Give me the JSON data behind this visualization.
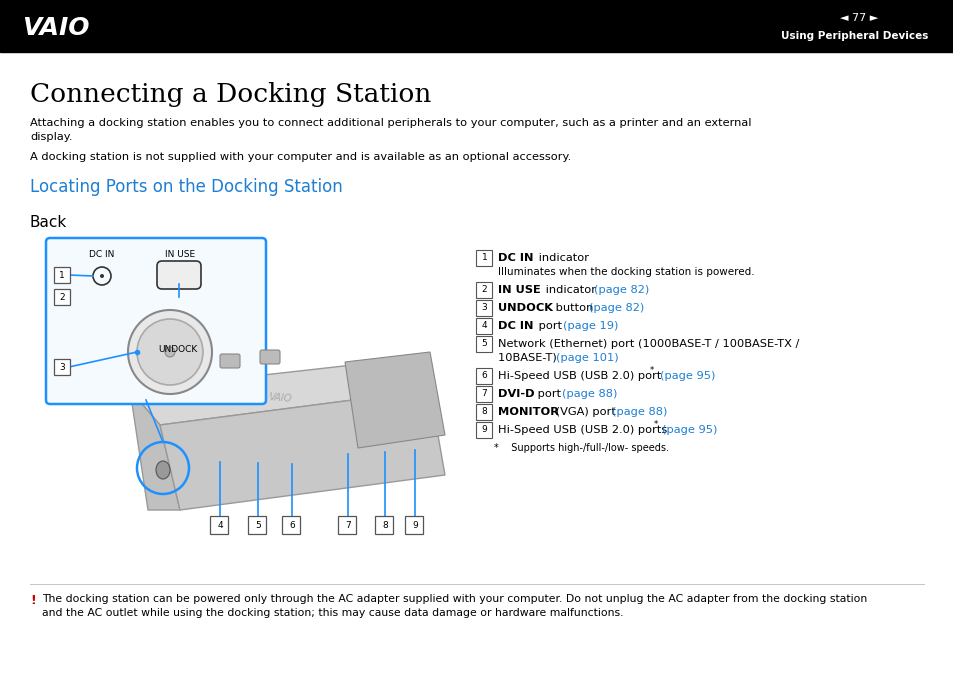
{
  "bg_color": "#ffffff",
  "header_bg": "#000000",
  "header_text_color": "#ffffff",
  "header_page": "77",
  "header_section": "Using Peripheral Devices",
  "title": "Connecting a Docking Station",
  "subtitle_color": "#1e7fd4",
  "subtitle": "Locating Ports on the Docking Station",
  "back_label": "Back",
  "para1": "Attaching a docking station enables you to connect additional peripherals to your computer, such as a printer and an external\ndisplay.",
  "para2": "A docking station is not supplied with your computer and is available as an optional accessory.",
  "link_color": "#1e7fd4",
  "warning_color": "#cc0000",
  "warning_text": "The docking station can be powered only through the AC adapter supplied with your computer. Do not unplug the AC adapter from the docking station\nand the AC outlet while using the docking station; this may cause data damage or hardware malfunctions.",
  "diagram_blue": "#1e90ff",
  "diagram_gray": "#c0c0c0",
  "diagram_dark": "#555555",
  "items": [
    {
      "num": "1",
      "bold": "DC IN",
      "rest": " indicator",
      "link": "",
      "sub": "Illuminates when the docking station is powered."
    },
    {
      "num": "2",
      "bold": "IN USE",
      "rest": " indicator ",
      "link": "(page 82)",
      "sub": ""
    },
    {
      "num": "3",
      "bold": "UNDOCK",
      "rest": " button ",
      "link": "(page 82)",
      "sub": ""
    },
    {
      "num": "4",
      "bold": "DC IN",
      "rest": " port ",
      "link": "(page 19)",
      "sub": ""
    },
    {
      "num": "5",
      "bold": "",
      "rest": "Network (Ethernet) port (1000BASE-T / 100BASE-TX /\n10BASE-T) ",
      "link": "(page 101)",
      "sub": ""
    },
    {
      "num": "6",
      "bold": "",
      "rest": "Hi-Speed USB (USB 2.0) port* ",
      "link": "(page 95)",
      "sub": ""
    },
    {
      "num": "7",
      "bold": "DVI-D",
      "rest": " port ",
      "link": "(page 88)",
      "sub": ""
    },
    {
      "num": "8",
      "bold": "MONITOR",
      "rest": " (VGA) port ",
      "link": "(page 88)",
      "sub": ""
    },
    {
      "num": "9",
      "bold": "",
      "rest": "Hi-Speed USB (USB 2.0) ports* ",
      "link": "(page 95)",
      "sub": ""
    }
  ],
  "footnote": "*    Supports high-/full-/low- speeds."
}
